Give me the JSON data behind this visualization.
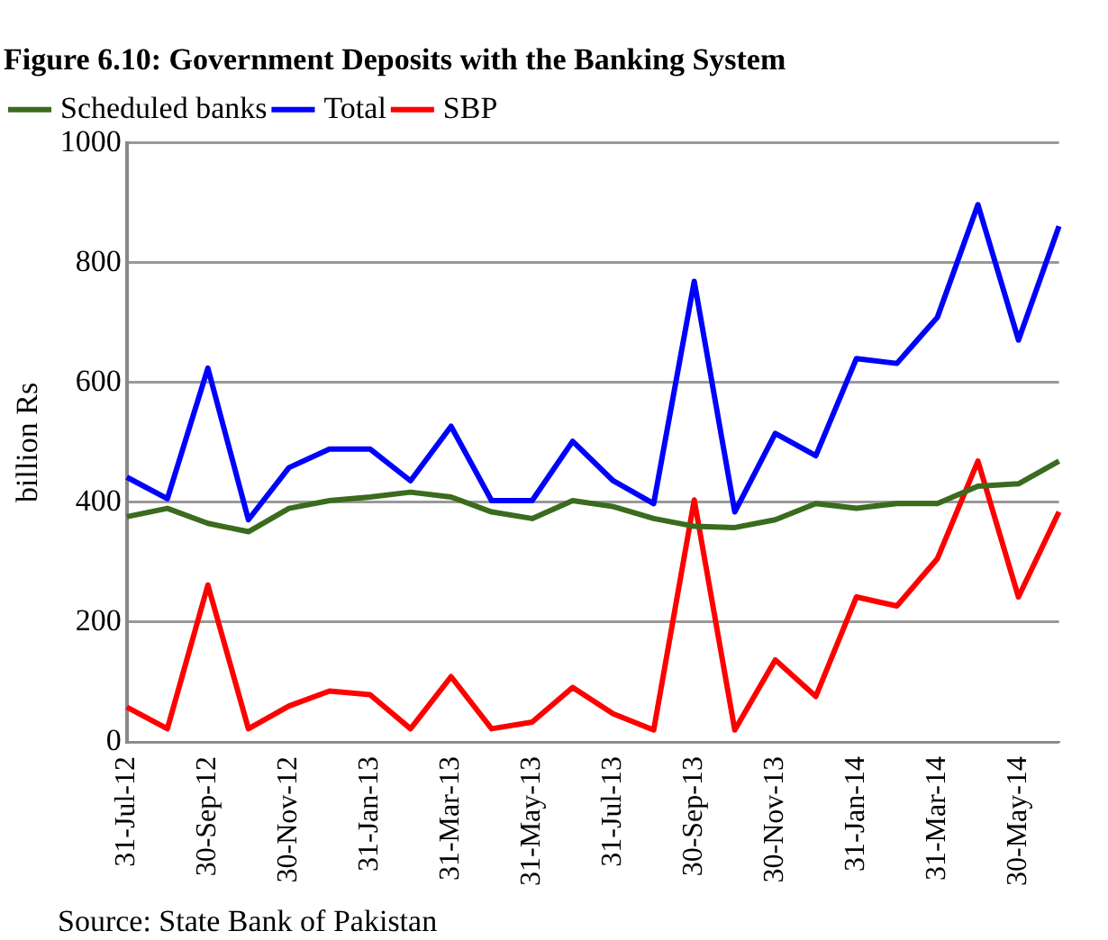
{
  "chart_data": {
    "type": "line",
    "title": "Figure 6.10: Government Deposits with the Banking System",
    "ylabel": "billion Rs",
    "categories": [
      "31-Jul-12",
      null,
      "30-Sep-12",
      null,
      "30-Nov-12",
      null,
      "31-Jan-13",
      null,
      "31-Mar-13",
      null,
      "31-May-13",
      null,
      "31-Jul-13",
      null,
      "30-Sep-13",
      null,
      "30-Nov-13",
      null,
      "31-Jan-14",
      null,
      "31-Mar-14",
      null,
      "30-May-14",
      null
    ],
    "series": [
      {
        "name": "Scheduled banks",
        "color": "#3a6b1e",
        "values": [
          376,
          390,
          365,
          351,
          390,
          403,
          409,
          417,
          409,
          384,
          373,
          403,
          393,
          373,
          360,
          358,
          371,
          398,
          390,
          398,
          398,
          427,
          431,
          469
        ]
      },
      {
        "name": "Total",
        "color": "#0000ff",
        "values": [
          442,
          406,
          624,
          371,
          458,
          489,
          489,
          436,
          527,
          403,
          403,
          502,
          436,
          398,
          769,
          384,
          515,
          478,
          640,
          632,
          709,
          897,
          671,
          861
        ]
      },
      {
        "name": "SBP",
        "color": "#ff0000",
        "values": [
          58,
          22,
          262,
          22,
          60,
          85,
          79,
          22,
          109,
          22,
          33,
          91,
          47,
          20,
          404,
          20,
          137,
          76,
          242,
          227,
          306,
          469,
          242,
          384
        ]
      }
    ],
    "ylim": [
      0,
      1000
    ],
    "yticks": [
      0,
      200,
      400,
      600,
      800,
      1000
    ],
    "grid": "y",
    "legend": "top left",
    "annotations": [
      "Source: State Bank of Pakistan"
    ]
  }
}
